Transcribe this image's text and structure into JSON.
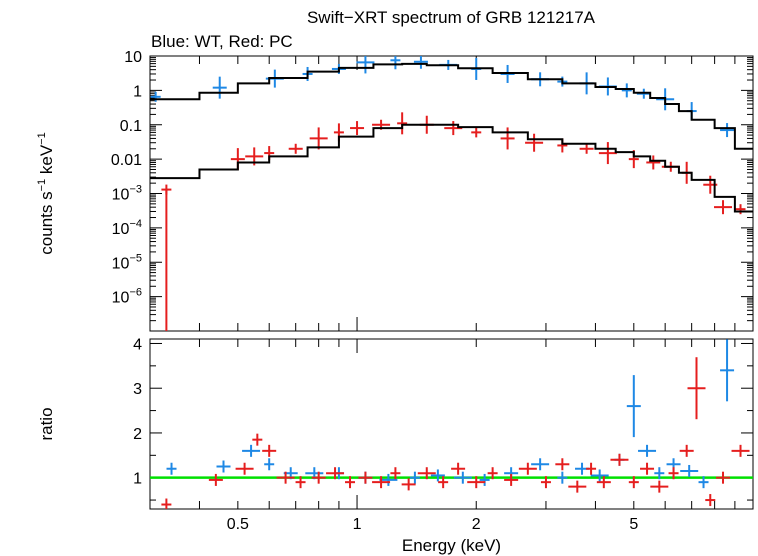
{
  "chart_data": {
    "type": "scatter",
    "title": "Swift−XRT spectrum of GRB 121217A",
    "subtitle": "Blue: WT, Red: PC",
    "colors": {
      "wt": "#1e88e5",
      "pc": "#e51e1e",
      "model": "#000000",
      "unity": "#00e000"
    },
    "x_axis": {
      "label": "Energy (keV)",
      "scale": "log",
      "range": [
        0.3,
        10
      ],
      "tick_labels": [
        {
          "value": 0.5,
          "label": "0.5"
        },
        {
          "value": 1,
          "label": "1"
        },
        {
          "value": 2,
          "label": "2"
        },
        {
          "value": 5,
          "label": "5"
        }
      ]
    },
    "panels": [
      {
        "id": "spectrum",
        "ylabel_parts": [
          "counts s",
          "−1",
          " keV",
          "−1"
        ],
        "yscale": "log",
        "ylim": [
          1e-07,
          10
        ],
        "tick_labels": [
          {
            "value": 10,
            "base": "10",
            "exp": ""
          },
          {
            "value": 1,
            "base": "1",
            "exp": ""
          },
          {
            "value": 0.1,
            "base": "0.1",
            "exp": ""
          },
          {
            "value": 0.01,
            "base": "0.01",
            "exp": ""
          },
          {
            "value": 0.001,
            "base": "10",
            "exp": "−3"
          },
          {
            "value": 0.0001,
            "base": "10",
            "exp": "−4"
          },
          {
            "value": 1e-05,
            "base": "10",
            "exp": "−5"
          },
          {
            "value": 1e-06,
            "base": "10",
            "exp": "−6"
          }
        ],
        "series": [
          {
            "id": "wt-data",
            "color": "wt",
            "points": [
              [
                0.31,
                0.65
              ],
              [
                0.45,
                1.2
              ],
              [
                0.62,
                2.2
              ],
              [
                0.75,
                3.0
              ],
              [
                0.9,
                4.2
              ],
              [
                1.05,
                6.5
              ],
              [
                1.25,
                7.5
              ],
              [
                1.45,
                6.8
              ],
              [
                1.7,
                5.5
              ],
              [
                2.0,
                4.2
              ],
              [
                2.4,
                3.0
              ],
              [
                2.9,
                2.1
              ],
              [
                3.3,
                1.8
              ],
              [
                3.8,
                1.6
              ],
              [
                4.3,
                1.3
              ],
              [
                4.8,
                1.0
              ],
              [
                5.3,
                0.8
              ],
              [
                6.0,
                0.55
              ],
              [
                7.0,
                0.25
              ],
              [
                8.6,
                0.07
              ]
            ]
          },
          {
            "id": "pc-data",
            "color": "pc",
            "points": [
              [
                0.33,
                0.0013
              ],
              [
                0.5,
                0.01
              ],
              [
                0.55,
                0.012
              ],
              [
                0.6,
                0.015
              ],
              [
                0.7,
                0.02
              ],
              [
                0.8,
                0.04
              ],
              [
                0.9,
                0.06
              ],
              [
                1.0,
                0.08
              ],
              [
                1.15,
                0.1
              ],
              [
                1.3,
                0.11
              ],
              [
                1.5,
                0.1
              ],
              [
                1.75,
                0.08
              ],
              [
                2.0,
                0.06
              ],
              [
                2.4,
                0.04
              ],
              [
                2.8,
                0.03
              ],
              [
                3.3,
                0.025
              ],
              [
                3.8,
                0.02
              ],
              [
                4.3,
                0.015
              ],
              [
                5.0,
                0.01
              ],
              [
                5.6,
                0.008
              ],
              [
                6.2,
                0.006
              ],
              [
                6.8,
                0.004
              ],
              [
                7.8,
                0.0018
              ],
              [
                8.4,
                0.0004
              ],
              [
                9.3,
                0.00035
              ]
            ]
          }
        ],
        "models": [
          {
            "id": "wt-model",
            "points": [
              [
                0.3,
                0.55
              ],
              [
                0.4,
                0.85
              ],
              [
                0.5,
                1.6
              ],
              [
                0.6,
                2.3
              ],
              [
                0.75,
                3.5
              ],
              [
                0.9,
                4.5
              ],
              [
                1.1,
                5.7
              ],
              [
                1.3,
                5.9
              ],
              [
                1.5,
                5.4
              ],
              [
                1.8,
                4.4
              ],
              [
                2.2,
                3.2
              ],
              [
                2.7,
                2.1
              ],
              [
                3.3,
                1.6
              ],
              [
                4.0,
                1.25
              ],
              [
                4.5,
                1.1
              ],
              [
                5.0,
                0.85
              ],
              [
                5.5,
                0.6
              ],
              [
                6.0,
                0.4
              ],
              [
                6.5,
                0.25
              ],
              [
                7.0,
                0.14
              ],
              [
                8.0,
                0.08
              ],
              [
                9.0,
                0.02
              ]
            ]
          },
          {
            "id": "pc-model",
            "points": [
              [
                0.3,
                0.0028
              ],
              [
                0.4,
                0.005
              ],
              [
                0.5,
                0.008
              ],
              [
                0.6,
                0.012
              ],
              [
                0.75,
                0.022
              ],
              [
                0.9,
                0.045
              ],
              [
                1.1,
                0.08
              ],
              [
                1.3,
                0.1
              ],
              [
                1.5,
                0.1
              ],
              [
                1.8,
                0.085
              ],
              [
                2.2,
                0.06
              ],
              [
                2.7,
                0.038
              ],
              [
                3.3,
                0.028
              ],
              [
                4.0,
                0.02
              ],
              [
                4.5,
                0.016
              ],
              [
                5.0,
                0.012
              ],
              [
                5.5,
                0.009
              ],
              [
                6.0,
                0.006
              ],
              [
                6.5,
                0.004
              ],
              [
                7.0,
                0.0025
              ],
              [
                8.0,
                0.0008
              ],
              [
                9.0,
                0.0003
              ]
            ]
          }
        ]
      },
      {
        "id": "ratio",
        "ylabel": "ratio",
        "yscale": "linear",
        "ylim": [
          0.3,
          4.1
        ],
        "tick_labels": [
          {
            "value": 1,
            "label": "1"
          },
          {
            "value": 2,
            "label": "2"
          },
          {
            "value": 3,
            "label": "3"
          },
          {
            "value": 4,
            "label": "4"
          }
        ],
        "unity_line": 1,
        "series": [
          {
            "id": "wt-ratio",
            "color": "wt",
            "points": [
              [
                0.34,
                1.2
              ],
              [
                0.46,
                1.25
              ],
              [
                0.54,
                1.6
              ],
              [
                0.6,
                1.3
              ],
              [
                0.68,
                1.1
              ],
              [
                0.78,
                1.1
              ],
              [
                0.9,
                1.1
              ],
              [
                1.05,
                1.0
              ],
              [
                1.2,
                0.95
              ],
              [
                1.4,
                1.0
              ],
              [
                1.6,
                1.05
              ],
              [
                1.85,
                1.0
              ],
              [
                2.1,
                0.95
              ],
              [
                2.45,
                1.1
              ],
              [
                2.9,
                1.3
              ],
              [
                3.3,
                1.0
              ],
              [
                3.7,
                1.2
              ],
              [
                4.1,
                1.05
              ],
              [
                4.6,
                1.4
              ],
              [
                5.0,
                2.6
              ],
              [
                5.4,
                1.6
              ],
              [
                5.8,
                1.1
              ],
              [
                6.3,
                1.3
              ],
              [
                6.9,
                1.15
              ],
              [
                7.5,
                0.9
              ],
              [
                8.6,
                3.4
              ]
            ]
          },
          {
            "id": "pc-ratio",
            "color": "pc",
            "points": [
              [
                0.33,
                0.4
              ],
              [
                0.44,
                0.95
              ],
              [
                0.52,
                1.2
              ],
              [
                0.56,
                1.85
              ],
              [
                0.6,
                1.6
              ],
              [
                0.66,
                1.0
              ],
              [
                0.72,
                0.9
              ],
              [
                0.8,
                1.0
              ],
              [
                0.88,
                1.1
              ],
              [
                0.96,
                0.9
              ],
              [
                1.05,
                1.0
              ],
              [
                1.15,
                0.9
              ],
              [
                1.25,
                1.1
              ],
              [
                1.35,
                0.85
              ],
              [
                1.5,
                1.1
              ],
              [
                1.65,
                0.9
              ],
              [
                1.8,
                1.2
              ],
              [
                2.0,
                0.9
              ],
              [
                2.2,
                1.1
              ],
              [
                2.45,
                0.95
              ],
              [
                2.7,
                1.2
              ],
              [
                3.0,
                0.9
              ],
              [
                3.3,
                1.3
              ],
              [
                3.6,
                0.8
              ],
              [
                3.9,
                1.2
              ],
              [
                4.2,
                0.9
              ],
              [
                4.6,
                1.4
              ],
              [
                5.0,
                0.9
              ],
              [
                5.4,
                1.2
              ],
              [
                5.8,
                0.8
              ],
              [
                6.3,
                1.1
              ],
              [
                6.8,
                1.6
              ],
              [
                7.2,
                3.0
              ],
              [
                7.8,
                0.5
              ],
              [
                8.4,
                1.0
              ],
              [
                9.3,
                1.6
              ]
            ]
          }
        ]
      }
    ]
  }
}
